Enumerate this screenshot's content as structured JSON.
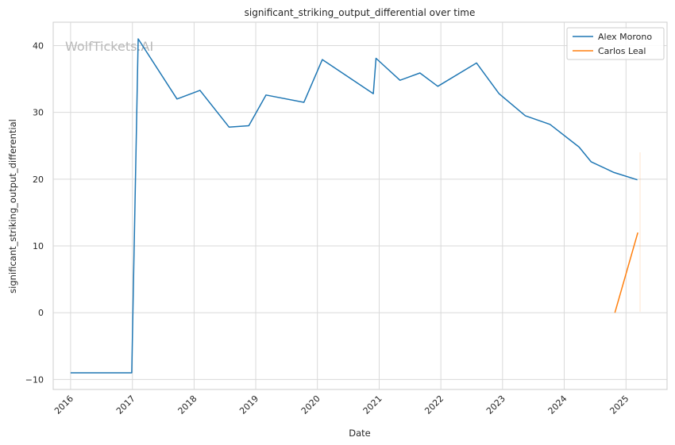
{
  "chart_data": {
    "type": "line",
    "title": "significant_striking_output_differential over time",
    "xlabel": "Date",
    "ylabel": "significant_striking_output_differential",
    "watermark": "WolfTickets.AI",
    "x_ticks": [
      "2016",
      "2017",
      "2018",
      "2019",
      "2020",
      "2021",
      "2022",
      "2023",
      "2024",
      "2025"
    ],
    "y_ticks": [
      -10,
      0,
      10,
      20,
      30,
      40
    ],
    "xlim": [
      "2015-09-20",
      "2025-09-01"
    ],
    "ylim": [
      -11.5,
      43.5
    ],
    "grid": true,
    "legend_position": "top-right",
    "series": [
      {
        "name": "Alex Morono",
        "color": "#1f77b4",
        "points": [
          [
            "2016-01-01",
            -9
          ],
          [
            "2016-12-28",
            -9
          ],
          [
            "2017-02-04",
            41
          ],
          [
            "2017-09-22",
            32
          ],
          [
            "2018-02-05",
            33.3
          ],
          [
            "2018-07-27",
            27.8
          ],
          [
            "2018-11-21",
            28
          ],
          [
            "2019-03-03",
            32.6
          ],
          [
            "2019-10-13",
            31.5
          ],
          [
            "2020-01-30",
            37.9
          ],
          [
            "2020-11-27",
            32.8
          ],
          [
            "2020-12-13",
            38.1
          ],
          [
            "2021-05-04",
            34.8
          ],
          [
            "2021-08-30",
            35.9
          ],
          [
            "2021-12-14",
            33.9
          ],
          [
            "2022-07-31",
            37.4
          ],
          [
            "2022-12-11",
            32.8
          ],
          [
            "2023-05-16",
            29.5
          ],
          [
            "2023-10-09",
            28.2
          ],
          [
            "2024-03-29",
            24.8
          ],
          [
            "2024-06-08",
            22.6
          ],
          [
            "2024-10-21",
            21
          ],
          [
            "2025-03-09",
            19.9
          ]
        ]
      },
      {
        "name": "Carlos Leal",
        "color": "#ff7f0e",
        "points": [
          [
            "2024-10-27",
            0
          ],
          [
            "2025-03-12",
            12
          ]
        ]
      }
    ]
  }
}
